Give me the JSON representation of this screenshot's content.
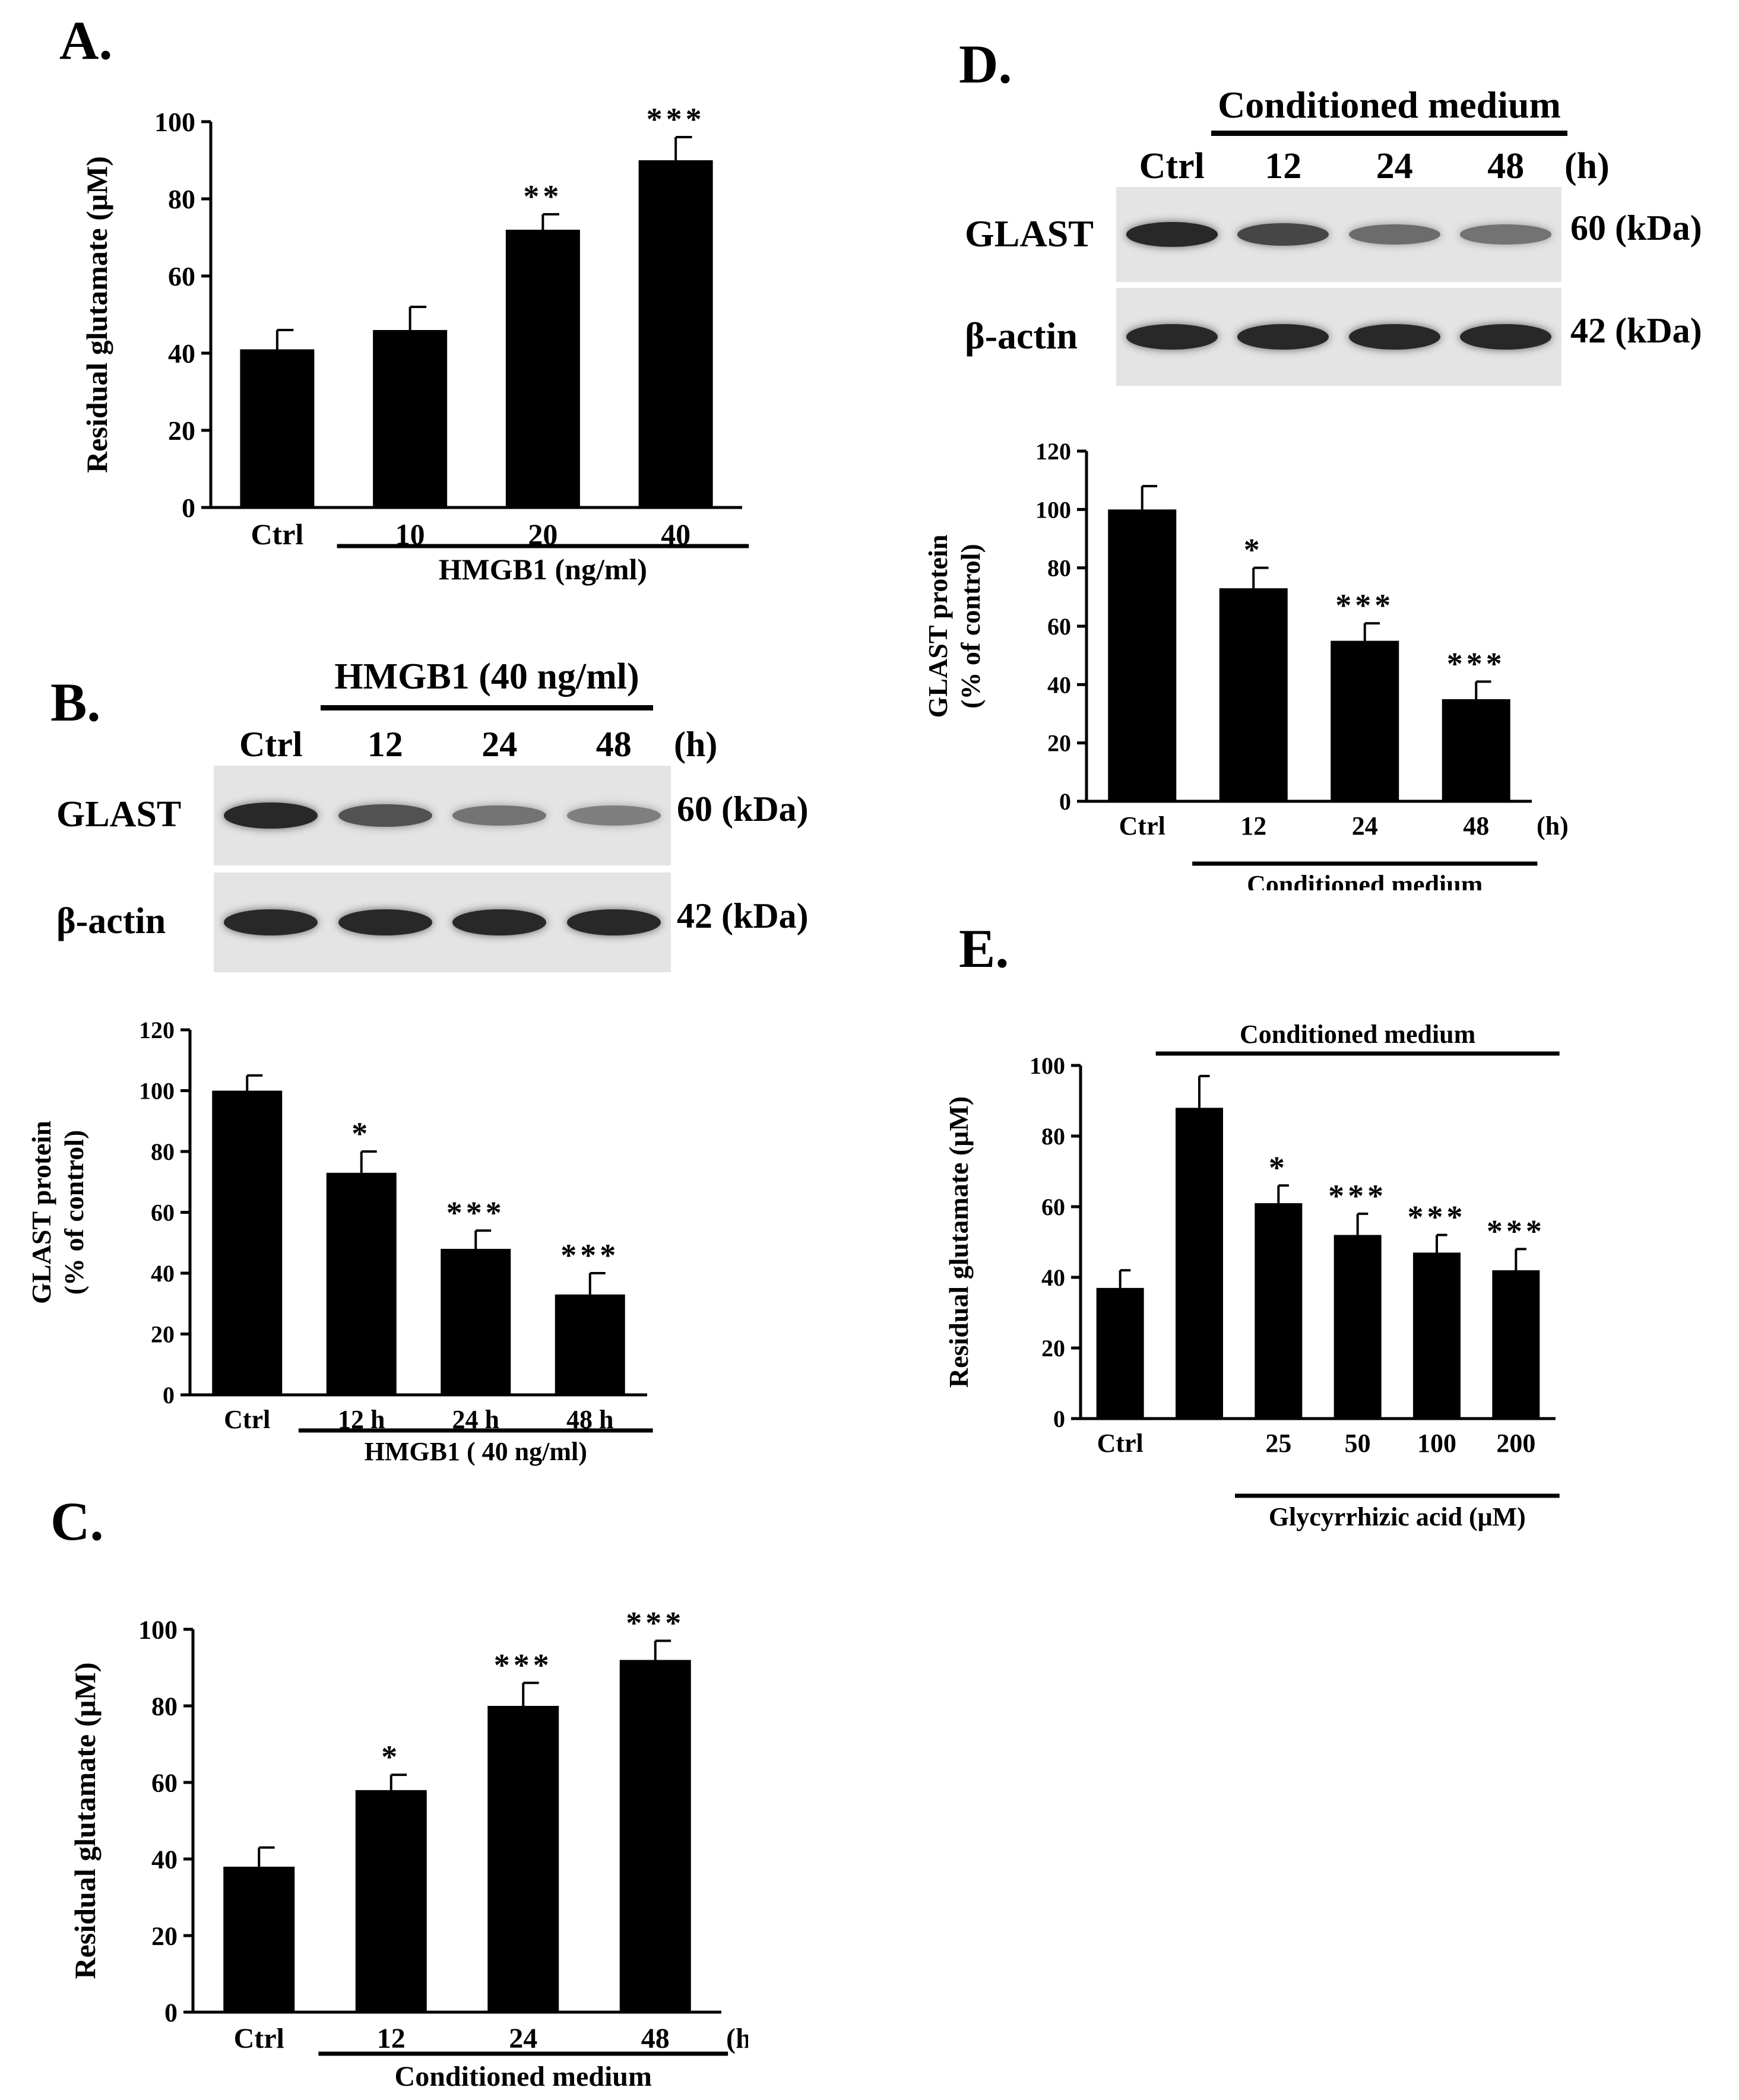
{
  "panels": {
    "A": {
      "letter": "A.",
      "chart_data": {
        "type": "bar",
        "categories": [
          "Ctrl",
          "10",
          "20",
          "40"
        ],
        "values": [
          41,
          46,
          72,
          90
        ],
        "errors": [
          5,
          6,
          4,
          6
        ],
        "significance": [
          "",
          "",
          "**",
          "***"
        ],
        "ylabel": "Residual glutamate (μM)",
        "ylim": [
          0,
          100
        ],
        "yticks": [
          0,
          20,
          40,
          60,
          80,
          100
        ],
        "group_label": "HMGB1 (ng/ml)",
        "group_start": 1,
        "group_end": 3,
        "unit_suffix": ""
      }
    },
    "B": {
      "letter": "B.",
      "blot": {
        "header": "HMGB1 (40 ng/ml)",
        "lanes": [
          "Ctrl",
          "12",
          "24",
          "48"
        ],
        "lane_unit": "(h)",
        "rows": [
          {
            "name": "GLAST",
            "size": "60 (kDa)",
            "intensity": [
              1.0,
              0.72,
              0.5,
              0.42
            ]
          },
          {
            "name": "β-actin",
            "size": "42 (kDa)",
            "intensity": [
              1.0,
              1.0,
              1.0,
              1.0
            ]
          }
        ]
      },
      "chart_data": {
        "type": "bar",
        "categories": [
          "Ctrl",
          "12 h",
          "24 h",
          "48 h"
        ],
        "values": [
          100,
          73,
          48,
          33
        ],
        "errors": [
          5,
          7,
          6,
          7
        ],
        "significance": [
          "",
          "*",
          "***",
          "***"
        ],
        "ylabel": "GLAST protein",
        "ylabel2": "(% of control)",
        "ylim": [
          0,
          120
        ],
        "yticks": [
          0,
          20,
          40,
          60,
          80,
          100,
          120
        ],
        "group_label": "HMGB1 ( 40 ng/ml)",
        "group_start": 1,
        "group_end": 3,
        "unit_suffix": ""
      }
    },
    "C": {
      "letter": "C.",
      "chart_data": {
        "type": "bar",
        "categories": [
          "Ctrl",
          "12",
          "24",
          "48"
        ],
        "values": [
          38,
          58,
          80,
          92
        ],
        "errors": [
          5,
          4,
          6,
          5
        ],
        "significance": [
          "",
          "*",
          "***",
          "***"
        ],
        "ylabel": "Residual glutamate (μM)",
        "ylim": [
          0,
          100
        ],
        "yticks": [
          0,
          20,
          40,
          60,
          80,
          100
        ],
        "group_label": "Conditioned medium",
        "group_start": 1,
        "group_end": 3,
        "unit_suffix": "(h)"
      }
    },
    "D": {
      "letter": "D.",
      "blot": {
        "header": "Conditioned medium",
        "lanes": [
          "Ctrl",
          "12",
          "24",
          "48"
        ],
        "lane_unit": "(h)",
        "rows": [
          {
            "name": "GLAST",
            "size": "60 (kDa)",
            "intensity": [
              1.0,
              0.8,
              0.55,
              0.5
            ]
          },
          {
            "name": "β-actin",
            "size": "42 (kDa)",
            "intensity": [
              1.0,
              1.0,
              1.0,
              1.0
            ]
          }
        ]
      },
      "chart_data": {
        "type": "bar",
        "categories": [
          "Ctrl",
          "12",
          "24",
          "48"
        ],
        "values": [
          100,
          73,
          55,
          35
        ],
        "errors": [
          8,
          7,
          6,
          6
        ],
        "significance": [
          "",
          "*",
          "***",
          "***"
        ],
        "ylabel": "GLAST protein",
        "ylabel2": "(% of control)",
        "ylim": [
          0,
          120
        ],
        "yticks": [
          0,
          20,
          40,
          60,
          80,
          100,
          120
        ],
        "group_label": "Conditioned medium",
        "group_start": 1,
        "group_end": 3,
        "unit_suffix": "(h)"
      }
    },
    "E": {
      "letter": "E.",
      "chart_data": {
        "type": "bar",
        "categories": [
          "Ctrl",
          "",
          "25",
          "50",
          "100",
          "200"
        ],
        "values": [
          37,
          88,
          61,
          52,
          47,
          42
        ],
        "errors": [
          5,
          9,
          5,
          6,
          5,
          6
        ],
        "significance": [
          "",
          "",
          "*",
          "***",
          "***",
          "***"
        ],
        "ylabel": "Residual glutamate (μM)",
        "ylim": [
          0,
          100
        ],
        "yticks": [
          0,
          20,
          40,
          60,
          80,
          100
        ],
        "top_label": "Conditioned medium",
        "top_start": 1,
        "top_end": 5,
        "group_label": "Glycyrrhizic acid (μM)",
        "group_start": 2,
        "group_end": 5,
        "unit_suffix": ""
      }
    }
  }
}
